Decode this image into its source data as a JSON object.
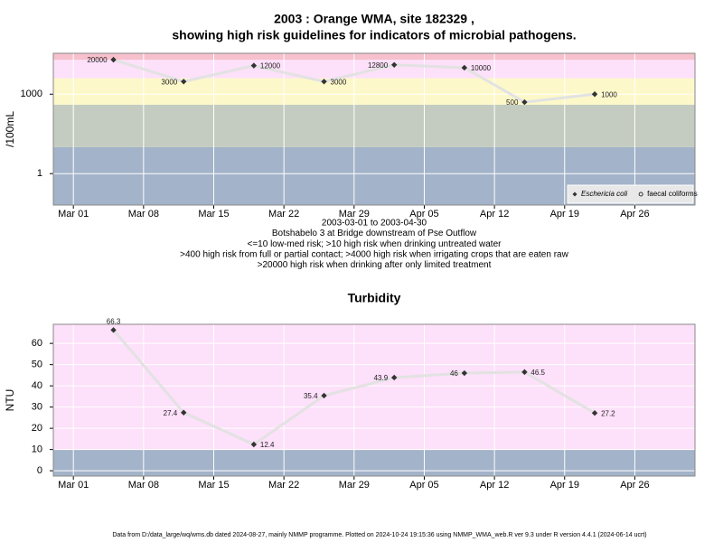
{
  "chart_data": [
    {
      "type": "line",
      "title": [
        "2003 : Orange WMA, site 182329 ,",
        "showing high risk guidelines for indicators of microbial pathogens."
      ],
      "notes": [
        "2003-03-01 to 2003-04-30",
        "Botshabelo 3 at Bridge downstream of Pse Outflow",
        "<=10 low-med risk; >10 high risk when drinking untreated water",
        ">400 high risk from full or partial contact; >4000 high risk when irrigating crops that are eaten raw",
        ">20000 high risk when drinking after only limited treatment"
      ],
      "y_label": "/100mL",
      "log_y": true,
      "x": [
        "2003-03-05",
        "2003-03-12",
        "2003-03-19",
        "2003-03-26",
        "2003-04-02",
        "2003-04-09",
        "2003-04-15",
        "2003-04-22"
      ],
      "series": [
        {
          "name": "Eschericia coli",
          "color": "#333333",
          "marker": "diamond",
          "values": [
            20000,
            3000,
            12000,
            3000,
            12800,
            10000,
            500,
            1000
          ]
        },
        {
          "name": "faecal coliforms",
          "color": "#333333",
          "marker": "circle",
          "values": [
            null,
            null,
            null,
            null,
            null,
            null,
            null,
            null
          ]
        }
      ],
      "xlim": [
        "2003-02-27",
        "2003-05-02"
      ],
      "xticks": [
        {
          "value": "2003-03-01",
          "label": "Mar 01"
        },
        {
          "value": "2003-03-08",
          "label": "Mar 08"
        },
        {
          "value": "2003-03-15",
          "label": "Mar 15"
        },
        {
          "value": "2003-03-22",
          "label": "Mar 22"
        },
        {
          "value": "2003-03-29",
          "label": "Mar 29"
        },
        {
          "value": "2003-04-05",
          "label": "Apr 05"
        },
        {
          "value": "2003-04-12",
          "label": "Apr 12"
        },
        {
          "value": "2003-04-19",
          "label": "Apr 19"
        },
        {
          "value": "2003-04-26",
          "label": "Apr 26"
        }
      ],
      "ylim": [
        0.065,
        35000
      ],
      "yticks": [
        1,
        1000
      ],
      "band_edges": [
        10,
        400,
        4000,
        20000
      ],
      "band_colors": [
        "#a3b3c9",
        "#c4ccc1",
        "#fdf8c9",
        "#fde0f9",
        "#f6c0cc"
      ],
      "line_color": "#e2e2e2",
      "grid": true,
      "legend": "bottom-right"
    },
    {
      "type": "line",
      "title": "Turbidity",
      "y_label": "NTU",
      "log_y": false,
      "x": [
        "2003-03-05",
        "2003-03-12",
        "2003-03-19",
        "2003-03-26",
        "2003-04-02",
        "2003-04-09",
        "2003-04-15",
        "2003-04-22"
      ],
      "series": [
        {
          "color": "#333333",
          "marker": "diamond",
          "values": [
            66.3,
            27.4,
            12.4,
            35.4,
            43.9,
            46,
            46.5,
            27.2
          ]
        }
      ],
      "xlim": [
        "2003-02-27",
        "2003-05-02"
      ],
      "xticks": [
        {
          "value": "2003-03-01",
          "label": "Mar 01"
        },
        {
          "value": "2003-03-08",
          "label": "Mar 08"
        },
        {
          "value": "2003-03-15",
          "label": "Mar 15"
        },
        {
          "value": "2003-03-22",
          "label": "Mar 22"
        },
        {
          "value": "2003-03-29",
          "label": "Mar 29"
        },
        {
          "value": "2003-04-05",
          "label": "Apr 05"
        },
        {
          "value": "2003-04-12",
          "label": "Apr 12"
        },
        {
          "value": "2003-04-19",
          "label": "Apr 19"
        },
        {
          "value": "2003-04-26",
          "label": "Apr 26"
        }
      ],
      "ylim": [
        -2.5,
        69
      ],
      "yticks": [
        0,
        10,
        20,
        30,
        40,
        50,
        60
      ],
      "band_edges": [
        10
      ],
      "band_colors": [
        "#a3b3c9",
        "#fde0f9"
      ],
      "line_color": "#e2e2e2",
      "grid": true
    }
  ],
  "footer": "Data from D:/data_large/wq/wms.db dated 2024-08-27, mainly NMMP programme. Plotted on 2024-10-24 19:15:36 using NMMP_WMA_web.R ver 9.3 under R version 4.4.1 (2024-06-14 ucrt)"
}
